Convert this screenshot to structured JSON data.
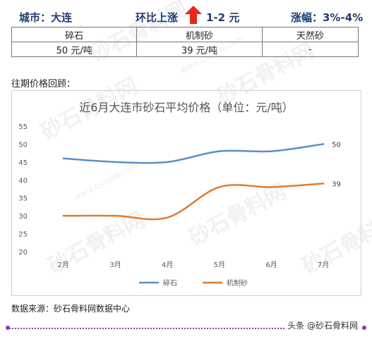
{
  "header": {
    "city": "城市：大连",
    "change_label": "环比上涨",
    "change_value": "1-2 元",
    "amplitude": "涨幅：3%-4%",
    "arrow_color": "#e8261c"
  },
  "price_table": {
    "headers": [
      "碎石",
      "机制砂",
      "天然砂"
    ],
    "values": [
      "50 元/吨",
      "39 元/吨",
      "-"
    ]
  },
  "history_label": "往期价格回顾：",
  "chart_data": {
    "type": "line",
    "title": "近6月大连市砂石平均价格（单位：元/吨）",
    "categories": [
      "2月",
      "3月",
      "4月",
      "5月",
      "6月",
      "7月"
    ],
    "ylim": [
      20,
      55
    ],
    "yticks": [
      "20",
      "25",
      "30",
      "35",
      "40",
      "45",
      "50",
      "55"
    ],
    "grid": false,
    "legend": "bottom",
    "series": [
      {
        "name": "碎石",
        "color": "#5b8fc6",
        "values": [
          46,
          45,
          45,
          48,
          48,
          50
        ],
        "end_label": "50"
      },
      {
        "name": "机制砂",
        "color": "#e07b2e",
        "values": [
          30,
          30,
          29.5,
          38,
          38,
          39
        ],
        "end_label": "39"
      }
    ]
  },
  "source": "数据来源：砂石骨料网数据中心",
  "credit": "头条 @砂石骨料网",
  "watermark": {
    "text": "砂石骨料网",
    "url": "www.cssglw.com"
  }
}
